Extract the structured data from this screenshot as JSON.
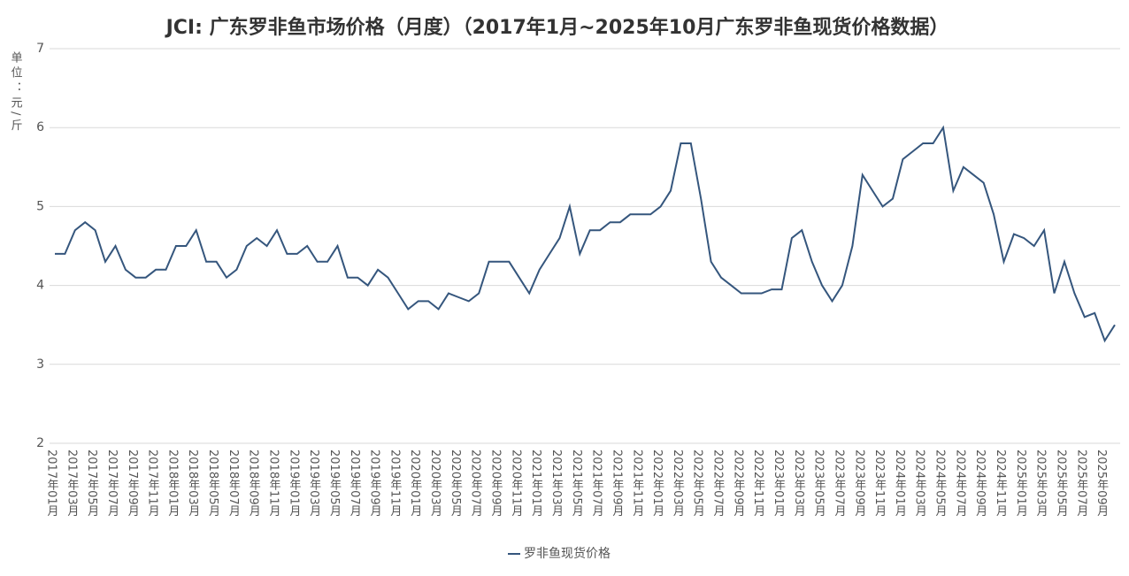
{
  "chart_data": {
    "type": "line",
    "title": "JCI: 广东罗非鱼市场价格（月度）（2017年1月~2025年10月广东罗非鱼现货价格数据）",
    "y_label": "单位：元/斤",
    "categories": [
      "2017年01月",
      null,
      "2017年03月",
      null,
      "2017年05月",
      null,
      "2017年07月",
      null,
      "2017年09月",
      null,
      "2017年11月",
      null,
      "2018年01月",
      null,
      "2018年03月",
      null,
      "2018年05月",
      null,
      "2018年07月",
      null,
      "2018年09月",
      null,
      "2018年11月",
      null,
      "2019年01月",
      null,
      "2019年03月",
      null,
      "2019年05月",
      null,
      "2019年07月",
      null,
      "2019年09月",
      null,
      "2019年11月",
      null,
      "2020年01月",
      null,
      "2020年03月",
      null,
      "2020年05月",
      null,
      "2020年07月",
      null,
      "2020年09月",
      null,
      "2020年11月",
      null,
      "2021年01月",
      null,
      "2021年03月",
      null,
      "2021年05月",
      null,
      "2021年07月",
      null,
      "2021年09月",
      null,
      "2021年11月",
      null,
      "2022年01月",
      null,
      "2022年03月",
      null,
      "2022年05月",
      null,
      "2022年07月",
      null,
      "2022年09月",
      null,
      "2022年11月",
      null,
      "2023年01月",
      null,
      "2023年03月",
      null,
      "2023年05月",
      null,
      "2023年07月",
      null,
      "2023年09月",
      null,
      "2023年11月",
      null,
      "2024年01月",
      null,
      "2024年03月",
      null,
      "2024年05月",
      null,
      "2024年07月",
      null,
      "2024年09月",
      null,
      "2024年11月",
      null,
      "2025年01月",
      null,
      "2025年03月",
      null,
      "2025年05月",
      null,
      "2025年07月",
      null,
      "2025年09月",
      null
    ],
    "series": [
      {
        "name": "罗非鱼现货价格",
        "color": "#35567d",
        "values": [
          4.4,
          4.4,
          4.7,
          4.8,
          4.7,
          4.3,
          4.5,
          4.2,
          4.1,
          4.1,
          4.2,
          4.2,
          4.5,
          4.5,
          4.7,
          4.3,
          4.3,
          4.1,
          4.2,
          4.5,
          4.6,
          4.5,
          4.7,
          4.4,
          4.4,
          4.5,
          4.3,
          4.3,
          4.5,
          4.1,
          4.1,
          4.0,
          4.2,
          4.1,
          3.9,
          3.7,
          3.8,
          3.8,
          3.7,
          3.9,
          3.85,
          3.8,
          3.9,
          4.3,
          4.3,
          4.3,
          4.1,
          3.9,
          4.2,
          4.4,
          4.6,
          5.0,
          4.4,
          4.7,
          4.7,
          4.8,
          4.8,
          4.9,
          4.9,
          4.9,
          5.0,
          5.2,
          5.8,
          5.8,
          5.1,
          4.3,
          4.1,
          4.0,
          3.9,
          3.9,
          3.9,
          3.95,
          3.95,
          4.6,
          4.7,
          4.3,
          4.0,
          3.8,
          4.0,
          4.5,
          5.4,
          5.2,
          5.0,
          5.1,
          5.6,
          5.7,
          5.8,
          5.8,
          6.0,
          5.2,
          5.5,
          5.4,
          5.3,
          4.9,
          4.3,
          4.65,
          4.6,
          4.5,
          4.7,
          3.9,
          4.3,
          3.9,
          3.6,
          3.65,
          3.3,
          3.5
        ]
      }
    ],
    "ylim": [
      2,
      7
    ],
    "yticks": [
      2,
      3,
      4,
      5,
      6,
      7
    ],
    "grid": true,
    "legend": "bottom"
  }
}
